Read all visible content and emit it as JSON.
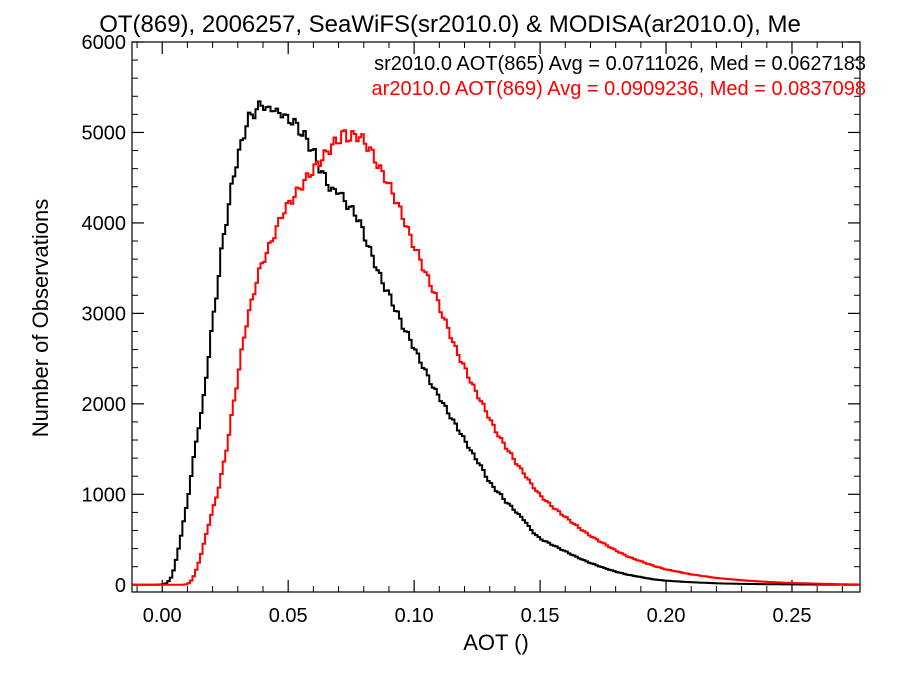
{
  "chart_data": {
    "type": "line",
    "title": "OT(869), 2006257, SeaWiFS(sr2010.0) & MODISA(ar2010.0), Me",
    "xlabel": "AOT ()",
    "ylabel": "Number of Observations",
    "xlim": [
      -0.012,
      0.277
    ],
    "ylim": [
      -80,
      6000
    ],
    "xticks": [
      0.0,
      0.05,
      0.1,
      0.15,
      0.2,
      0.25
    ],
    "xtick_labels": [
      "0.00",
      "0.05",
      "0.10",
      "0.15",
      "0.20",
      "0.25"
    ],
    "yticks": [
      0,
      1000,
      2000,
      3000,
      4000,
      5000,
      6000
    ],
    "ytick_labels": [
      "0",
      "1000",
      "2000",
      "3000",
      "4000",
      "5000",
      "6000"
    ],
    "grid": false,
    "legend_position": "top-right",
    "series": [
      {
        "name": "sr2010.0",
        "legend": "sr2010.0 AOT(865) Avg = 0.0711026, Med = 0.0627183",
        "color": "#000000",
        "points": [
          [
            -0.012,
            0
          ],
          [
            -0.003,
            0
          ],
          [
            0.0,
            3
          ],
          [
            0.002,
            20
          ],
          [
            0.004,
            100
          ],
          [
            0.006,
            330
          ],
          [
            0.008,
            620
          ],
          [
            0.01,
            920
          ],
          [
            0.012,
            1300
          ],
          [
            0.014,
            1680
          ],
          [
            0.016,
            1960
          ],
          [
            0.018,
            2420
          ],
          [
            0.02,
            2900
          ],
          [
            0.022,
            3300
          ],
          [
            0.024,
            3800
          ],
          [
            0.026,
            4100
          ],
          [
            0.028,
            4480
          ],
          [
            0.03,
            4720
          ],
          [
            0.032,
            4930
          ],
          [
            0.034,
            5150
          ],
          [
            0.036,
            5200
          ],
          [
            0.038,
            5270
          ],
          [
            0.04,
            5330
          ],
          [
            0.042,
            5220
          ],
          [
            0.044,
            5300
          ],
          [
            0.046,
            5180
          ],
          [
            0.048,
            5240
          ],
          [
            0.05,
            5100
          ],
          [
            0.052,
            5160
          ],
          [
            0.054,
            5020
          ],
          [
            0.056,
            5000
          ],
          [
            0.058,
            4870
          ],
          [
            0.06,
            4800
          ],
          [
            0.062,
            4640
          ],
          [
            0.064,
            4530
          ],
          [
            0.066,
            4420
          ],
          [
            0.068,
            4330
          ],
          [
            0.07,
            4380
          ],
          [
            0.072,
            4250
          ],
          [
            0.074,
            4190
          ],
          [
            0.076,
            4120
          ],
          [
            0.078,
            4040
          ],
          [
            0.08,
            3880
          ],
          [
            0.082,
            3730
          ],
          [
            0.084,
            3590
          ],
          [
            0.086,
            3440
          ],
          [
            0.088,
            3310
          ],
          [
            0.09,
            3210
          ],
          [
            0.092,
            3080
          ],
          [
            0.094,
            2960
          ],
          [
            0.096,
            2830
          ],
          [
            0.098,
            2740
          ],
          [
            0.1,
            2620
          ],
          [
            0.102,
            2500
          ],
          [
            0.104,
            2390
          ],
          [
            0.106,
            2270
          ],
          [
            0.108,
            2160
          ],
          [
            0.11,
            2080
          ],
          [
            0.112,
            1980
          ],
          [
            0.114,
            1880
          ],
          [
            0.116,
            1790
          ],
          [
            0.118,
            1700
          ],
          [
            0.12,
            1600
          ],
          [
            0.122,
            1510
          ],
          [
            0.124,
            1410
          ],
          [
            0.126,
            1340
          ],
          [
            0.128,
            1230
          ],
          [
            0.13,
            1130
          ],
          [
            0.132,
            1060
          ],
          [
            0.134,
            1010
          ],
          [
            0.136,
            930
          ],
          [
            0.138,
            880
          ],
          [
            0.14,
            820
          ],
          [
            0.142,
            760
          ],
          [
            0.144,
            710
          ],
          [
            0.146,
            620
          ],
          [
            0.148,
            560
          ],
          [
            0.15,
            510
          ],
          [
            0.155,
            440
          ],
          [
            0.16,
            370
          ],
          [
            0.165,
            300
          ],
          [
            0.17,
            240
          ],
          [
            0.175,
            190
          ],
          [
            0.18,
            145
          ],
          [
            0.185,
            110
          ],
          [
            0.19,
            85
          ],
          [
            0.195,
            60
          ],
          [
            0.2,
            45
          ],
          [
            0.21,
            28
          ],
          [
            0.22,
            16
          ],
          [
            0.23,
            10
          ],
          [
            0.24,
            6
          ],
          [
            0.25,
            4
          ],
          [
            0.26,
            2
          ],
          [
            0.27,
            1
          ],
          [
            0.277,
            0
          ]
        ]
      },
      {
        "name": "ar2010.0",
        "legend": "ar2010.0 AOT(869) Avg = 0.0909236, Med = 0.0837098",
        "color": "#ff0000",
        "points": [
          [
            -0.012,
            0
          ],
          [
            0.008,
            0
          ],
          [
            0.01,
            5
          ],
          [
            0.012,
            60
          ],
          [
            0.014,
            200
          ],
          [
            0.016,
            390
          ],
          [
            0.018,
            620
          ],
          [
            0.02,
            820
          ],
          [
            0.022,
            1020
          ],
          [
            0.024,
            1280
          ],
          [
            0.026,
            1570
          ],
          [
            0.028,
            1950
          ],
          [
            0.03,
            2280
          ],
          [
            0.032,
            2670
          ],
          [
            0.034,
            2960
          ],
          [
            0.036,
            3180
          ],
          [
            0.038,
            3420
          ],
          [
            0.04,
            3580
          ],
          [
            0.042,
            3700
          ],
          [
            0.044,
            3840
          ],
          [
            0.046,
            3980
          ],
          [
            0.048,
            4120
          ],
          [
            0.05,
            4200
          ],
          [
            0.052,
            4280
          ],
          [
            0.054,
            4360
          ],
          [
            0.056,
            4440
          ],
          [
            0.058,
            4520
          ],
          [
            0.06,
            4590
          ],
          [
            0.062,
            4660
          ],
          [
            0.064,
            4730
          ],
          [
            0.066,
            4800
          ],
          [
            0.068,
            4880
          ],
          [
            0.07,
            4910
          ],
          [
            0.072,
            5000
          ],
          [
            0.074,
            4930
          ],
          [
            0.076,
            4970
          ],
          [
            0.078,
            4960
          ],
          [
            0.08,
            4910
          ],
          [
            0.082,
            4830
          ],
          [
            0.084,
            4740
          ],
          [
            0.086,
            4610
          ],
          [
            0.088,
            4530
          ],
          [
            0.09,
            4420
          ],
          [
            0.092,
            4300
          ],
          [
            0.094,
            4170
          ],
          [
            0.096,
            4040
          ],
          [
            0.098,
            3880
          ],
          [
            0.1,
            3740
          ],
          [
            0.102,
            3630
          ],
          [
            0.104,
            3480
          ],
          [
            0.106,
            3350
          ],
          [
            0.108,
            3240
          ],
          [
            0.11,
            3080
          ],
          [
            0.112,
            2930
          ],
          [
            0.114,
            2800
          ],
          [
            0.116,
            2640
          ],
          [
            0.118,
            2520
          ],
          [
            0.12,
            2400
          ],
          [
            0.122,
            2280
          ],
          [
            0.124,
            2160
          ],
          [
            0.126,
            2060
          ],
          [
            0.128,
            1950
          ],
          [
            0.13,
            1840
          ],
          [
            0.132,
            1720
          ],
          [
            0.134,
            1630
          ],
          [
            0.136,
            1540
          ],
          [
            0.138,
            1460
          ],
          [
            0.14,
            1370
          ],
          [
            0.142,
            1290
          ],
          [
            0.144,
            1220
          ],
          [
            0.146,
            1130
          ],
          [
            0.148,
            1060
          ],
          [
            0.15,
            990
          ],
          [
            0.155,
            860
          ],
          [
            0.16,
            750
          ],
          [
            0.165,
            640
          ],
          [
            0.17,
            540
          ],
          [
            0.175,
            460
          ],
          [
            0.18,
            380
          ],
          [
            0.185,
            310
          ],
          [
            0.19,
            260
          ],
          [
            0.195,
            210
          ],
          [
            0.2,
            170
          ],
          [
            0.21,
            115
          ],
          [
            0.22,
            75
          ],
          [
            0.23,
            50
          ],
          [
            0.24,
            32
          ],
          [
            0.25,
            20
          ],
          [
            0.26,
            12
          ],
          [
            0.27,
            6
          ],
          [
            0.277,
            3
          ]
        ]
      }
    ]
  }
}
